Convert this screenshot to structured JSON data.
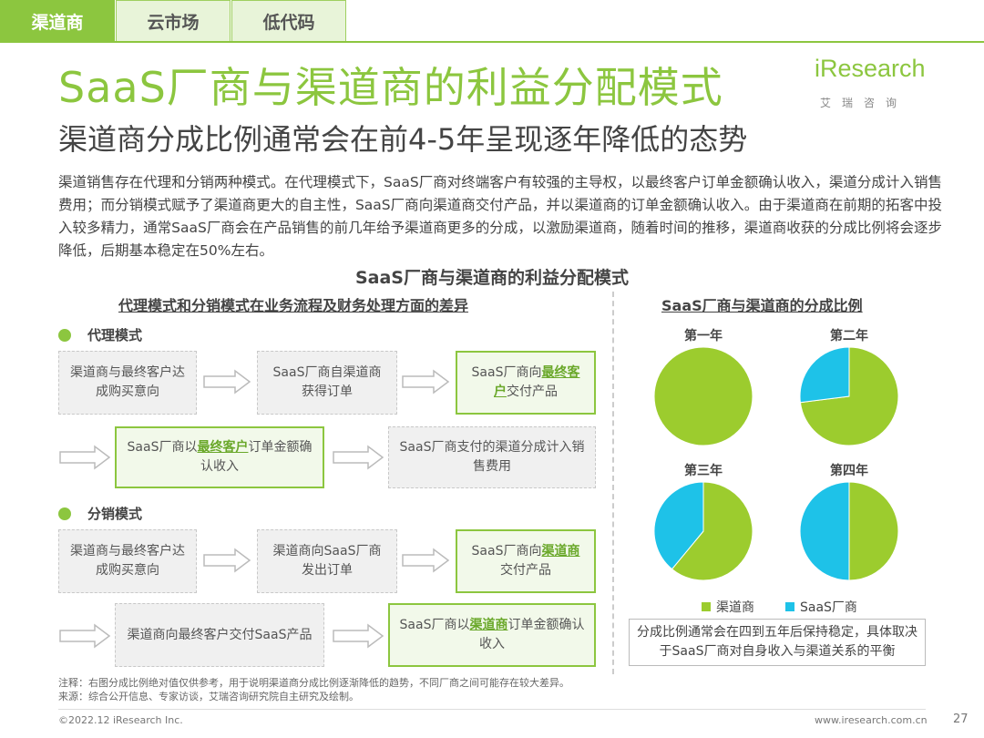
{
  "tabs": [
    {
      "label": "渠道商",
      "active": true
    },
    {
      "label": "云市场",
      "active": false
    },
    {
      "label": "低代码",
      "active": false
    }
  ],
  "title": "SaaS厂商与渠道商的利益分配模式",
  "subtitle": "渠道商分成比例通常会在前4-5年呈现逐年降低的态势",
  "logo": {
    "word": "iResearch",
    "cn": "艾瑞咨询"
  },
  "body_text": "渠道销售存在代理和分销两种模式。在代理模式下，SaaS厂商对终端客户有较强的主导权，以最终客户订单金额确认收入，渠道分成计入销售费用；而分销模式赋予了渠道商更大的自主性，SaaS厂商向渠道商交付产品，并以渠道商的订单金额确认收入。由于渠道商在前期的拓客中投入较多精力，通常SaaS厂商会在产品销售的前几年给予渠道商更多的分成，以激励渠道商，随着时间的推移，渠道商收获的分成比例将会逐步降低，后期基本稳定在50%左右。",
  "diagram_title": "SaaS厂商与渠道商的利益分配模式",
  "left_header": "代理模式和分销模式在业务流程及财务处理方面的差异",
  "right_header": "SaaS厂商与渠道商的分成比例",
  "agency": {
    "label": "代理模式",
    "b1": "渠道商与最终客户达成购买意向",
    "b2": "SaaS厂商自渠道商获得订单",
    "b3_pre": "SaaS厂商向",
    "b3_hl": "最终客户",
    "b3_post": "交付产品",
    "b4_pre": "SaaS厂商以",
    "b4_hl": "最终客户",
    "b4_post": "订单金额确认收入",
    "b5": "SaaS厂商支付的渠道分成计入销售费用"
  },
  "distribution": {
    "label": "分销模式",
    "b1": "渠道商与最终客户达成购买意向",
    "b2": "渠道商向SaaS厂商发出订单",
    "b3_pre": "SaaS厂商向",
    "b3_hl": "渠道商",
    "b3_post": "交付产品",
    "b4": "渠道商向最终客户交付SaaS产品",
    "b5_pre": "SaaS厂商以",
    "b5_hl": "渠道商",
    "b5_post": "订单金额确认收入"
  },
  "chart_data": {
    "type": "pie",
    "note": "illustrative split",
    "categories": [
      "渠道商",
      "SaaS厂商"
    ],
    "colors": {
      "渠道商": "#9ccc2e",
      "SaaS厂商": "#1ec2e8"
    },
    "years": [
      {
        "label": "第一年",
        "values": [
          100,
          0
        ]
      },
      {
        "label": "第二年",
        "values": [
          73,
          27
        ]
      },
      {
        "label": "第三年",
        "values": [
          61,
          39
        ]
      },
      {
        "label": "第四年",
        "values": [
          50,
          50
        ]
      }
    ]
  },
  "legend": [
    {
      "label": "渠道商",
      "color": "#9ccc2e"
    },
    {
      "label": "SaaS厂商",
      "color": "#1ec2e8"
    }
  ],
  "pie_note": "分成比例通常会在四到五年后保持稳定，具体取决于SaaS厂商对自身收入与渠道关系的平衡",
  "footnote1": "注释：右图分成比例绝对值仅供参考，用于说明渠道商分成比例逐渐降低的趋势，不同厂商之间可能存在较大差异。",
  "footnote2": "来源：综合公开信息、专家访谈，艾瑞咨询研究院自主研究及绘制。",
  "footer_left": "©2022.12 iResearch Inc.",
  "footer_right": "www.iresearch.com.cn",
  "page_number": "27"
}
